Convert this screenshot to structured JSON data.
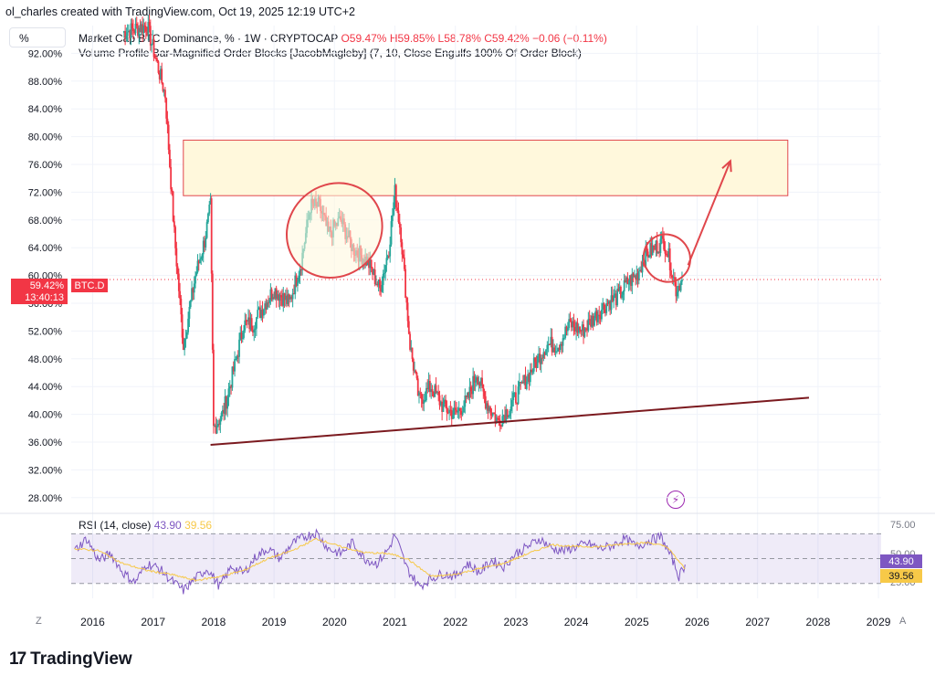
{
  "header": {
    "caption": "ol_charles created with TradingView.com, Oct 19, 2025 12:19 UTC+2",
    "scale_button": "%"
  },
  "legend": {
    "line1_prefix": "Market Cap BTC Dominance, % · 1W · CRYPTOCAP",
    "open": "O59.47%",
    "high": "H59.85%",
    "low": "L58.78%",
    "close": "C59.42%",
    "change": "−0.06 (−0.11%)",
    "line2": "Volume Profile Bar-Magnified Order Blocks [JacobMagleby] (7, 10, Close Engulfs 100% Of Order Block)"
  },
  "price_tag": {
    "value": "59.42%",
    "countdown": "13:40:13",
    "symbol": "BTC.D"
  },
  "rsi": {
    "label": "RSI (14, close)",
    "rsi_value": "43.90",
    "ma_value": "39.56",
    "upper": "75.00",
    "mid": "50.00",
    "lower": "25.00"
  },
  "footer": {
    "z_label": "Z",
    "a_label": "A",
    "brand": "TradingView"
  },
  "colors": {
    "up": "#26a69a",
    "down": "#f23645",
    "annotation": "#e0474c",
    "trendline": "#7b1a1f",
    "zone_fill": "#fff8dc",
    "rsi": "#7e57c2",
    "rsi_ma": "#f7c948"
  },
  "chart_data": {
    "type": "candlestick",
    "title": "Market Cap BTC Dominance, % · 1W · CRYPTOCAP",
    "ylabel": "%",
    "ylim": [
      26,
      96
    ],
    "y_ticks": [
      92,
      88,
      84,
      80,
      76,
      72,
      68,
      64,
      60,
      56,
      52,
      48,
      44,
      40,
      36,
      32,
      28
    ],
    "y_tick_labels": [
      "92.00%",
      "88.00%",
      "84.00%",
      "80.00%",
      "76.00%",
      "72.00%",
      "68.00%",
      "64.00%",
      "60.00%",
      "56.00%",
      "52.00%",
      "48.00%",
      "44.00%",
      "40.00%",
      "36.00%",
      "32.00%",
      "28.00%"
    ],
    "x_ticks": [
      2016,
      2017,
      2018,
      2019,
      2020,
      2021,
      2022,
      2023,
      2024,
      2025,
      2026,
      2027,
      2028,
      2029
    ],
    "x_tick_labels": [
      "2016",
      "2017",
      "2018",
      "2019",
      "2020",
      "2021",
      "2022",
      "2023",
      "2024",
      "2025",
      "2026",
      "2027",
      "2028",
      "2029"
    ],
    "xlim": [
      2015.6,
      2029.4
    ],
    "series_path": [
      [
        2016.5,
        95
      ],
      [
        2016.9,
        96
      ],
      [
        2017.2,
        86
      ],
      [
        2017.35,
        66
      ],
      [
        2017.5,
        50
      ],
      [
        2017.7,
        60
      ],
      [
        2017.85,
        65
      ],
      [
        2017.95,
        70
      ],
      [
        2018.0,
        38
      ],
      [
        2018.15,
        40
      ],
      [
        2018.35,
        47
      ],
      [
        2018.5,
        53
      ],
      [
        2018.65,
        53
      ],
      [
        2018.85,
        56
      ],
      [
        2019.0,
        58
      ],
      [
        2019.25,
        56
      ],
      [
        2019.45,
        62
      ],
      [
        2019.6,
        70
      ],
      [
        2019.75,
        70
      ],
      [
        2019.9,
        66
      ],
      [
        2020.1,
        68
      ],
      [
        2020.3,
        64
      ],
      [
        2020.55,
        62
      ],
      [
        2020.75,
        58
      ],
      [
        2020.9,
        64
      ],
      [
        2021.0,
        72
      ],
      [
        2021.1,
        66
      ],
      [
        2021.25,
        50
      ],
      [
        2021.4,
        42
      ],
      [
        2021.6,
        44
      ],
      [
        2021.8,
        41
      ],
      [
        2022.0,
        40
      ],
      [
        2022.2,
        42
      ],
      [
        2022.35,
        46
      ],
      [
        2022.5,
        42
      ],
      [
        2022.7,
        39
      ],
      [
        2022.9,
        41
      ],
      [
        2023.1,
        44
      ],
      [
        2023.3,
        47
      ],
      [
        2023.5,
        50
      ],
      [
        2023.7,
        50
      ],
      [
        2023.9,
        53
      ],
      [
        2024.1,
        52
      ],
      [
        2024.3,
        54
      ],
      [
        2024.5,
        56
      ],
      [
        2024.7,
        57
      ],
      [
        2024.85,
        59
      ],
      [
        2025.0,
        60
      ],
      [
        2025.15,
        63
      ],
      [
        2025.3,
        64
      ],
      [
        2025.45,
        65
      ],
      [
        2025.55,
        62
      ],
      [
        2025.65,
        58
      ],
      [
        2025.75,
        59.42
      ]
    ],
    "last_price": 59.42,
    "zone": {
      "x_from": 2017.5,
      "x_to": 2027.5,
      "y_from": 71.5,
      "y_to": 79.5
    },
    "trendline": {
      "from": [
        2017.95,
        35.6
      ],
      "to": [
        2027.85,
        42.4
      ]
    },
    "projection_arrow": {
      "from": [
        2025.85,
        61.5
      ],
      "to": [
        2026.55,
        76.5
      ]
    },
    "ellipses": [
      {
        "cx": 2020.0,
        "cy": 66.5,
        "rx_years": 0.75,
        "ry_pct": 13
      },
      {
        "cx": 2025.5,
        "cy": 62.5,
        "rx_years": 0.4,
        "ry_pct": 6
      }
    ],
    "rsi": {
      "ylim": [
        10,
        90
      ],
      "levels": [
        75,
        50,
        25
      ],
      "series": [
        [
          2015.7,
          58
        ],
        [
          2015.9,
          70
        ],
        [
          2016.1,
          48
        ],
        [
          2016.3,
          55
        ],
        [
          2016.5,
          36
        ],
        [
          2016.7,
          26
        ],
        [
          2016.9,
          45
        ],
        [
          2017.1,
          40
        ],
        [
          2017.3,
          28
        ],
        [
          2017.5,
          18
        ],
        [
          2017.7,
          30
        ],
        [
          2017.9,
          40
        ],
        [
          2018.1,
          22
        ],
        [
          2018.3,
          42
        ],
        [
          2018.5,
          35
        ],
        [
          2018.7,
          52
        ],
        [
          2018.9,
          60
        ],
        [
          2019.1,
          50
        ],
        [
          2019.3,
          65
        ],
        [
          2019.5,
          72
        ],
        [
          2019.7,
          76
        ],
        [
          2019.9,
          60
        ],
        [
          2020.1,
          55
        ],
        [
          2020.3,
          66
        ],
        [
          2020.5,
          50
        ],
        [
          2020.7,
          45
        ],
        [
          2020.9,
          60
        ],
        [
          2021.0,
          74
        ],
        [
          2021.2,
          40
        ],
        [
          2021.4,
          22
        ],
        [
          2021.6,
          30
        ],
        [
          2021.8,
          35
        ],
        [
          2022.0,
          32
        ],
        [
          2022.2,
          45
        ],
        [
          2022.4,
          36
        ],
        [
          2022.6,
          48
        ],
        [
          2022.8,
          42
        ],
        [
          2023.0,
          55
        ],
        [
          2023.2,
          62
        ],
        [
          2023.4,
          70
        ],
        [
          2023.6,
          60
        ],
        [
          2023.8,
          58
        ],
        [
          2024.0,
          62
        ],
        [
          2024.2,
          65
        ],
        [
          2024.4,
          60
        ],
        [
          2024.6,
          63
        ],
        [
          2024.8,
          70
        ],
        [
          2025.0,
          62
        ],
        [
          2025.2,
          68
        ],
        [
          2025.4,
          72
        ],
        [
          2025.6,
          48
        ],
        [
          2025.7,
          32
        ],
        [
          2025.8,
          43.9
        ]
      ],
      "ma_series": [
        [
          2015.7,
          60
        ],
        [
          2016.1,
          58
        ],
        [
          2016.5,
          45
        ],
        [
          2016.9,
          38
        ],
        [
          2017.3,
          34
        ],
        [
          2017.7,
          28
        ],
        [
          2018.1,
          32
        ],
        [
          2018.5,
          38
        ],
        [
          2018.9,
          50
        ],
        [
          2019.3,
          58
        ],
        [
          2019.7,
          70
        ],
        [
          2020.1,
          62
        ],
        [
          2020.5,
          56
        ],
        [
          2020.9,
          55
        ],
        [
          2021.2,
          50
        ],
        [
          2021.6,
          32
        ],
        [
          2022.0,
          34
        ],
        [
          2022.4,
          40
        ],
        [
          2022.8,
          45
        ],
        [
          2023.2,
          55
        ],
        [
          2023.6,
          64
        ],
        [
          2024.0,
          62
        ],
        [
          2024.4,
          62
        ],
        [
          2024.8,
          65
        ],
        [
          2025.2,
          66
        ],
        [
          2025.5,
          62
        ],
        [
          2025.8,
          39.56
        ]
      ]
    }
  }
}
